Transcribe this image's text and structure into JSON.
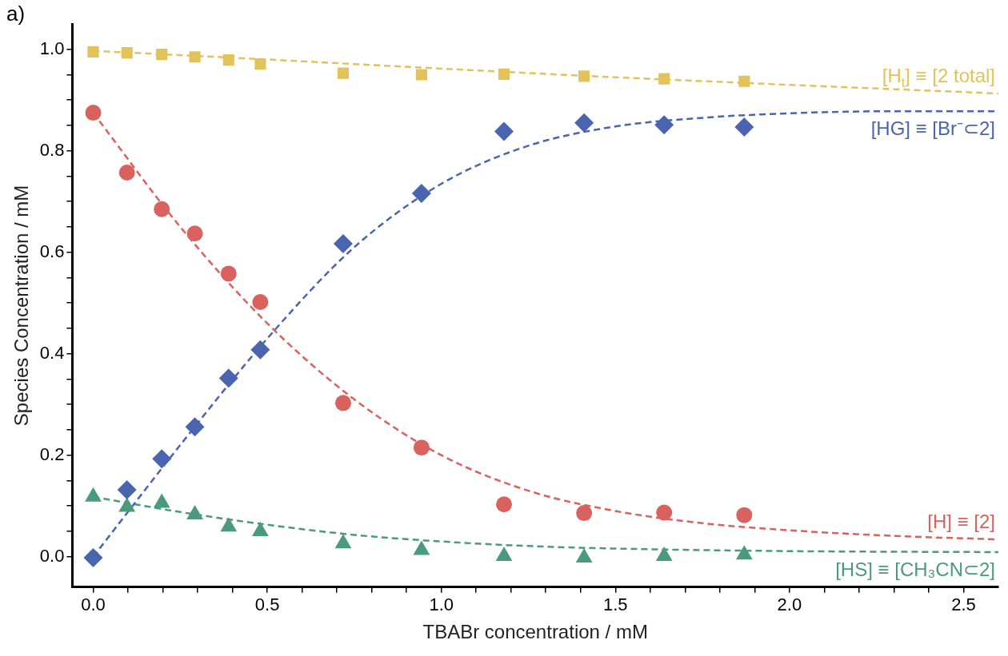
{
  "chart_data": {
    "type": "scatter",
    "xlabel": "TBABr concentration / mM",
    "ylabel": "Species Concentration / mM",
    "annotations": [
      "a)"
    ],
    "xlim": [
      -0.06,
      2.6
    ],
    "ylim": [
      -0.06,
      1.05
    ],
    "xticks": [
      {
        "value": 0,
        "label": "0.0"
      },
      {
        "value": 0.1,
        "label": null
      },
      {
        "value": 0.2,
        "label": null
      },
      {
        "value": 0.3,
        "label": null
      },
      {
        "value": 0.4,
        "label": null
      },
      {
        "value": 0.5,
        "label": "0.5"
      },
      {
        "value": 0.6,
        "label": null
      },
      {
        "value": 0.7,
        "label": null
      },
      {
        "value": 0.8,
        "label": null
      },
      {
        "value": 0.9,
        "label": null
      },
      {
        "value": 1,
        "label": "1.0"
      },
      {
        "value": 1.1,
        "label": null
      },
      {
        "value": 1.2,
        "label": null
      },
      {
        "value": 1.3,
        "label": null
      },
      {
        "value": 1.4,
        "label": null
      },
      {
        "value": 1.5,
        "label": "1.5"
      },
      {
        "value": 1.6,
        "label": null
      },
      {
        "value": 1.7,
        "label": null
      },
      {
        "value": 1.8,
        "label": null
      },
      {
        "value": 1.9,
        "label": null
      },
      {
        "value": 2,
        "label": "2.0"
      },
      {
        "value": 2.1,
        "label": null
      },
      {
        "value": 2.2,
        "label": null
      },
      {
        "value": 2.3,
        "label": null
      },
      {
        "value": 2.4,
        "label": null
      },
      {
        "value": 2.5,
        "label": "2.5"
      }
    ],
    "yticks": [
      {
        "value": 0,
        "label": "0.0"
      },
      {
        "value": 0.05,
        "label": null
      },
      {
        "value": 0.1,
        "label": null
      },
      {
        "value": 0.15,
        "label": null
      },
      {
        "value": 0.2,
        "label": "0.2"
      },
      {
        "value": 0.25,
        "label": null
      },
      {
        "value": 0.3,
        "label": null
      },
      {
        "value": 0.35,
        "label": null
      },
      {
        "value": 0.4,
        "label": "0.4"
      },
      {
        "value": 0.45,
        "label": null
      },
      {
        "value": 0.5,
        "label": null
      },
      {
        "value": 0.55,
        "label": null
      },
      {
        "value": 0.6,
        "label": "0.6"
      },
      {
        "value": 0.65,
        "label": null
      },
      {
        "value": 0.7,
        "label": null
      },
      {
        "value": 0.75,
        "label": null
      },
      {
        "value": 0.8,
        "label": "0.8"
      },
      {
        "value": 0.85,
        "label": null
      },
      {
        "value": 0.9,
        "label": null
      },
      {
        "value": 0.95,
        "label": null
      },
      {
        "value": 1,
        "label": "1.0"
      }
    ],
    "grid": false,
    "legend": false,
    "x": [
      0,
      0.097,
      0.197,
      0.292,
      0.389,
      0.48,
      0.718,
      0.943,
      1.18,
      1.41,
      1.64,
      1.87
    ],
    "series": [
      {
        "type": "scatter",
        "marker": "square",
        "color": "#e3c25a",
        "values": [
          0.995,
          0.993,
          0.99,
          0.985,
          0.979,
          0.971,
          0.953,
          0.95,
          0.951,
          0.947,
          0.942,
          0.937
        ]
      },
      {
        "type": "scatter",
        "marker": "diamond",
        "color": "#4a64b0",
        "values": [
          -0.002,
          0.132,
          0.193,
          0.256,
          0.352,
          0.408,
          0.617,
          0.716,
          0.838,
          0.855,
          0.851,
          0.847
        ]
      },
      {
        "type": "scatter",
        "marker": "circle",
        "color": "#d9615e",
        "values": [
          0.875,
          0.757,
          0.685,
          0.637,
          0.558,
          0.502,
          0.303,
          0.215,
          0.103,
          0.086,
          0.087,
          0.082
        ]
      },
      {
        "type": "scatter",
        "marker": "triangle",
        "color": "#4a9a7e",
        "values": [
          0.118,
          0.098,
          0.106,
          0.083,
          0.059,
          0.05,
          0.026,
          0.013,
          0.001,
          -0.002,
          0.001,
          0.004
        ]
      },
      {
        "type": "line",
        "name": "[H$_{t}$] ≡ [2 total]",
        "line_style": "dashed",
        "marker": "none",
        "color": "#e3c25a",
        "x": [
          0,
          0.5,
          1,
          1.5,
          2,
          2.6
        ],
        "values": [
          0.997,
          0.98,
          0.962,
          0.945,
          0.93,
          0.913
        ]
      },
      {
        "type": "line",
        "name": "[HG] ≡ [Br⁻⊂2]",
        "line_style": "dashed",
        "marker": "none",
        "color": "#4a64b0",
        "x": [
          0,
          0.25,
          0.5,
          0.75,
          1,
          1.25,
          1.5,
          1.75,
          2,
          2.3,
          2.6
        ],
        "values": [
          0,
          0.22,
          0.43,
          0.61,
          0.735,
          0.81,
          0.848,
          0.865,
          0.874,
          0.878,
          0.878
        ]
      },
      {
        "type": "line",
        "name": "[H] ≡ [2]",
        "line_style": "dashed",
        "marker": "none",
        "color": "#d9615e",
        "x": [
          0,
          0.25,
          0.5,
          0.75,
          1,
          1.25,
          1.5,
          1.75,
          2,
          2.3,
          2.6
        ],
        "values": [
          0.875,
          0.65,
          0.46,
          0.31,
          0.2,
          0.13,
          0.09,
          0.066,
          0.052,
          0.041,
          0.034
        ]
      },
      {
        "type": "line",
        "name": "[HS] ≡ [CH₃CN⊂2]",
        "line_style": "dashed",
        "marker": "none",
        "color": "#4a9a7e",
        "x": [
          0,
          0.25,
          0.5,
          0.75,
          1,
          1.25,
          1.5,
          2,
          2.6
        ],
        "values": [
          0.118,
          0.088,
          0.063,
          0.043,
          0.03,
          0.021,
          0.016,
          0.011,
          0.009
        ]
      }
    ]
  }
}
